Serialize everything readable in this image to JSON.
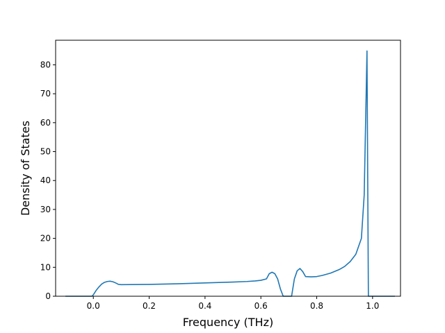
{
  "chart_data": {
    "type": "line",
    "title": "",
    "xlabel": "Frequency (THz)",
    "ylabel": "Density of States",
    "xlim": [
      -0.135,
      1.1
    ],
    "ylim": [
      0,
      88.5
    ],
    "xticks": [
      0.0,
      0.2,
      0.4,
      0.6,
      0.8,
      1.0
    ],
    "xtick_labels": [
      "0.0",
      "0.2",
      "0.4",
      "0.6",
      "0.8",
      "1.0"
    ],
    "yticks": [
      0,
      10,
      20,
      30,
      40,
      50,
      60,
      70,
      80
    ],
    "ytick_labels": [
      "0",
      "10",
      "20",
      "30",
      "40",
      "50",
      "60",
      "70",
      "80"
    ],
    "grid": false,
    "line_color": "#1f77b4",
    "series": [
      {
        "x": [
          -0.1,
          -0.005,
          0.0,
          0.01,
          0.02,
          0.03,
          0.04,
          0.05,
          0.06,
          0.07,
          0.08,
          0.09,
          0.1,
          0.2,
          0.3,
          0.4,
          0.5,
          0.55,
          0.58,
          0.6,
          0.62,
          0.63,
          0.64,
          0.65,
          0.66,
          0.67,
          0.68,
          0.7,
          0.71,
          0.72,
          0.73,
          0.74,
          0.75,
          0.76,
          0.78,
          0.8,
          0.82,
          0.85,
          0.88,
          0.9,
          0.92,
          0.94,
          0.96,
          0.97,
          0.98,
          0.985,
          0.99,
          1.08
        ],
        "y": [
          0,
          0,
          0.5,
          2.0,
          3.2,
          4.2,
          4.8,
          5.1,
          5.2,
          5.0,
          4.6,
          4.1,
          4.0,
          4.1,
          4.3,
          4.6,
          4.9,
          5.1,
          5.3,
          5.5,
          6.0,
          7.8,
          8.3,
          7.8,
          6.0,
          2.5,
          0,
          0,
          0,
          6.0,
          8.8,
          9.6,
          8.5,
          6.8,
          6.7,
          6.8,
          7.2,
          8.0,
          9.2,
          10.3,
          12.0,
          14.5,
          20.0,
          35.0,
          84.8,
          0,
          0,
          0
        ]
      }
    ]
  }
}
